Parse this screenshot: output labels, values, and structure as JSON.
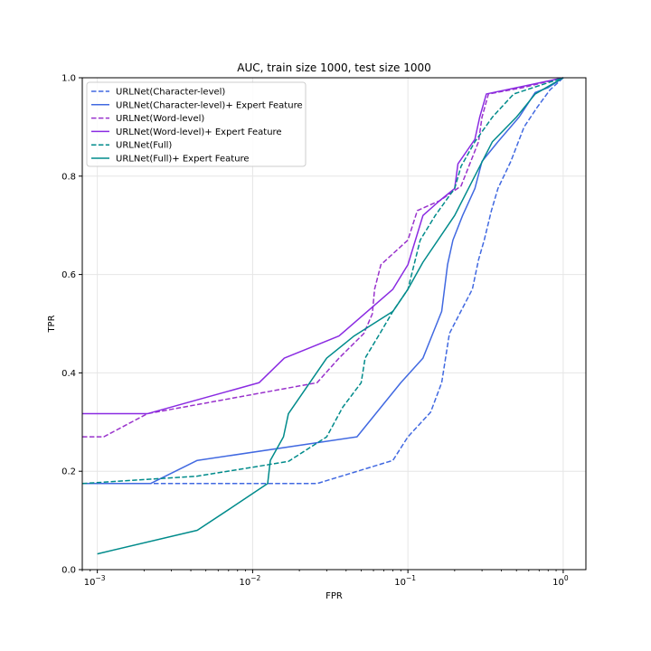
{
  "chart_data": {
    "type": "line",
    "title": "AUC, train size 1000, test size 1000",
    "xlabel": "FPR",
    "ylabel": "TPR",
    "xscale": "log",
    "xlim": [
      0.0008,
      1.4
    ],
    "ylim": [
      0.0,
      1.0
    ],
    "grid": true,
    "legend_position": "upper-left",
    "x_ticks": [
      {
        "value": 0.001,
        "base": "10",
        "exp": "−3"
      },
      {
        "value": 0.01,
        "base": "10",
        "exp": "−2"
      },
      {
        "value": 0.1,
        "base": "10",
        "exp": "−1"
      },
      {
        "value": 1,
        "base": "10",
        "exp": "0"
      }
    ],
    "y_ticks": [
      {
        "value": 0.0,
        "label": "0.0"
      },
      {
        "value": 0.2,
        "label": "0.2"
      },
      {
        "value": 0.4,
        "label": "0.4"
      },
      {
        "value": 0.6,
        "label": "0.6"
      },
      {
        "value": 0.8,
        "label": "0.8"
      },
      {
        "value": 1.0,
        "label": "1.0"
      }
    ],
    "series": [
      {
        "name": "URLNet(Character-level)",
        "color": "#4169e1",
        "dashed": true,
        "points": [
          [
            0.0008,
            0.175
          ],
          [
            0.026,
            0.175
          ],
          [
            0.08,
            0.222
          ],
          [
            0.1,
            0.27
          ],
          [
            0.14,
            0.32
          ],
          [
            0.165,
            0.38
          ],
          [
            0.185,
            0.48
          ],
          [
            0.215,
            0.52
          ],
          [
            0.26,
            0.57
          ],
          [
            0.285,
            0.63
          ],
          [
            0.31,
            0.67
          ],
          [
            0.345,
            0.73
          ],
          [
            0.38,
            0.775
          ],
          [
            0.46,
            0.83
          ],
          [
            0.56,
            0.9
          ],
          [
            0.68,
            0.94
          ],
          [
            0.82,
            0.975
          ],
          [
            1.0,
            1.0
          ]
        ]
      },
      {
        "name": "URLNet(Character-level)+ Expert Feature",
        "color": "#4169e1",
        "dashed": false,
        "points": [
          [
            0.0008,
            0.175
          ],
          [
            0.0022,
            0.175
          ],
          [
            0.0044,
            0.222
          ],
          [
            0.047,
            0.27
          ],
          [
            0.09,
            0.38
          ],
          [
            0.125,
            0.43
          ],
          [
            0.165,
            0.525
          ],
          [
            0.18,
            0.62
          ],
          [
            0.195,
            0.67
          ],
          [
            0.225,
            0.72
          ],
          [
            0.27,
            0.775
          ],
          [
            0.3,
            0.83
          ],
          [
            0.38,
            0.87
          ],
          [
            0.52,
            0.92
          ],
          [
            0.66,
            0.97
          ],
          [
            0.8,
            0.98
          ],
          [
            1.0,
            1.0
          ]
        ]
      },
      {
        "name": "URLNet(Word-level)",
        "color": "#9932cc",
        "dashed": true,
        "points": [
          [
            0.0008,
            0.27
          ],
          [
            0.0011,
            0.27
          ],
          [
            0.0021,
            0.317
          ],
          [
            0.026,
            0.38
          ],
          [
            0.036,
            0.43
          ],
          [
            0.052,
            0.48
          ],
          [
            0.059,
            0.52
          ],
          [
            0.061,
            0.57
          ],
          [
            0.067,
            0.62
          ],
          [
            0.1,
            0.67
          ],
          [
            0.115,
            0.73
          ],
          [
            0.16,
            0.75
          ],
          [
            0.22,
            0.78
          ],
          [
            0.285,
            0.87
          ],
          [
            0.3,
            0.92
          ],
          [
            0.33,
            0.967
          ],
          [
            0.55,
            0.98
          ],
          [
            1.0,
            1.0
          ]
        ]
      },
      {
        "name": "URLNet(Word-level)+ Expert Feature",
        "color": "#8a2be2",
        "dashed": false,
        "points": [
          [
            0.0008,
            0.317
          ],
          [
            0.0021,
            0.317
          ],
          [
            0.011,
            0.38
          ],
          [
            0.016,
            0.43
          ],
          [
            0.036,
            0.475
          ],
          [
            0.08,
            0.57
          ],
          [
            0.1,
            0.62
          ],
          [
            0.125,
            0.72
          ],
          [
            0.16,
            0.75
          ],
          [
            0.2,
            0.775
          ],
          [
            0.21,
            0.825
          ],
          [
            0.27,
            0.875
          ],
          [
            0.29,
            0.92
          ],
          [
            0.32,
            0.967
          ],
          [
            0.6,
            0.985
          ],
          [
            1.0,
            1.0
          ]
        ]
      },
      {
        "name": "URLNet(Full)",
        "color": "#008b8b",
        "dashed": true,
        "points": [
          [
            0.0008,
            0.175
          ],
          [
            0.0044,
            0.19
          ],
          [
            0.017,
            0.22
          ],
          [
            0.03,
            0.27
          ],
          [
            0.038,
            0.33
          ],
          [
            0.05,
            0.38
          ],
          [
            0.053,
            0.43
          ],
          [
            0.066,
            0.48
          ],
          [
            0.08,
            0.525
          ],
          [
            0.1,
            0.57
          ],
          [
            0.12,
            0.67
          ],
          [
            0.15,
            0.72
          ],
          [
            0.2,
            0.775
          ],
          [
            0.22,
            0.82
          ],
          [
            0.27,
            0.87
          ],
          [
            0.35,
            0.92
          ],
          [
            0.48,
            0.967
          ],
          [
            1.0,
            1.0
          ]
        ]
      },
      {
        "name": "URLNet(Full)+ Expert Feature",
        "color": "#008b8b",
        "dashed": false,
        "points": [
          [
            0.001,
            0.032
          ],
          [
            0.0044,
            0.08
          ],
          [
            0.0074,
            0.127
          ],
          [
            0.0125,
            0.175
          ],
          [
            0.013,
            0.222
          ],
          [
            0.0158,
            0.27
          ],
          [
            0.017,
            0.317
          ],
          [
            0.03,
            0.43
          ],
          [
            0.045,
            0.475
          ],
          [
            0.08,
            0.525
          ],
          [
            0.1,
            0.57
          ],
          [
            0.125,
            0.625
          ],
          [
            0.2,
            0.72
          ],
          [
            0.35,
            0.87
          ],
          [
            0.5,
            0.92
          ],
          [
            0.66,
            0.967
          ],
          [
            1.0,
            1.0
          ]
        ]
      }
    ]
  }
}
